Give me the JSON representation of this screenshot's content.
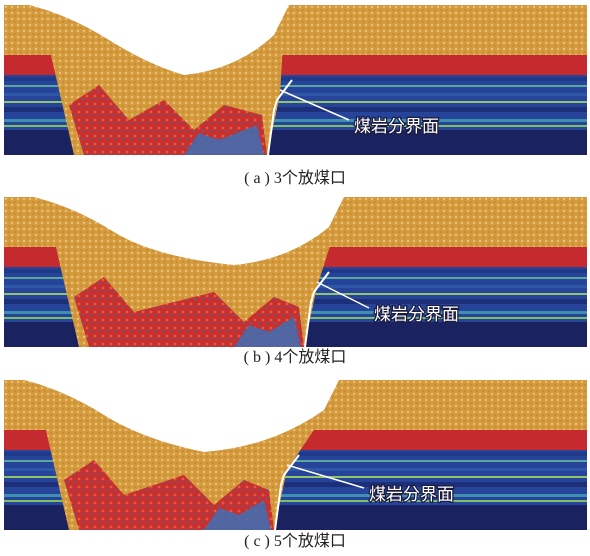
{
  "panels": [
    {
      "label": "煤岩分界面",
      "caption": "( a ) 3个放煤口"
    },
    {
      "label": "煤岩分界面",
      "caption": "( b ) 4个放煤口"
    },
    {
      "label": "煤岩分界面",
      "caption": "( c ) 5个放煤口"
    }
  ]
}
